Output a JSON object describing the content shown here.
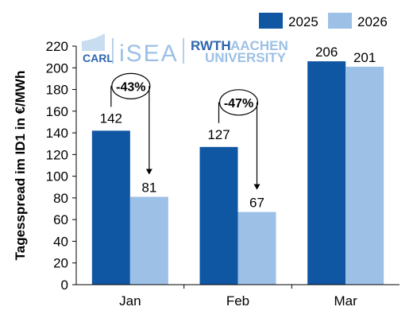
{
  "chart_data": {
    "type": "bar",
    "categories": [
      "Jan",
      "Feb",
      "Mar"
    ],
    "series": [
      {
        "name": "2025",
        "values": [
          142,
          127,
          206
        ],
        "color": "#0f56a3"
      },
      {
        "name": "2026",
        "values": [
          81,
          67,
          201
        ],
        "color": "#9cc0e6"
      }
    ],
    "ylabel": "Tagesspread im ID1 in €/MWh",
    "ylim": [
      0,
      220
    ],
    "yticks": [
      0,
      20,
      40,
      60,
      80,
      100,
      120,
      140,
      160,
      180,
      200,
      220
    ],
    "grid": false,
    "legend_position": "top-right",
    "annotations": [
      {
        "category": "Jan",
        "text": "-43%"
      },
      {
        "category": "Feb",
        "text": "-47%"
      }
    ]
  },
  "logos": {
    "carl": "CARL",
    "isea": "iSEA",
    "rwth": "RWTH",
    "aachen": "AACHEN",
    "university": "UNIVERSITY"
  }
}
